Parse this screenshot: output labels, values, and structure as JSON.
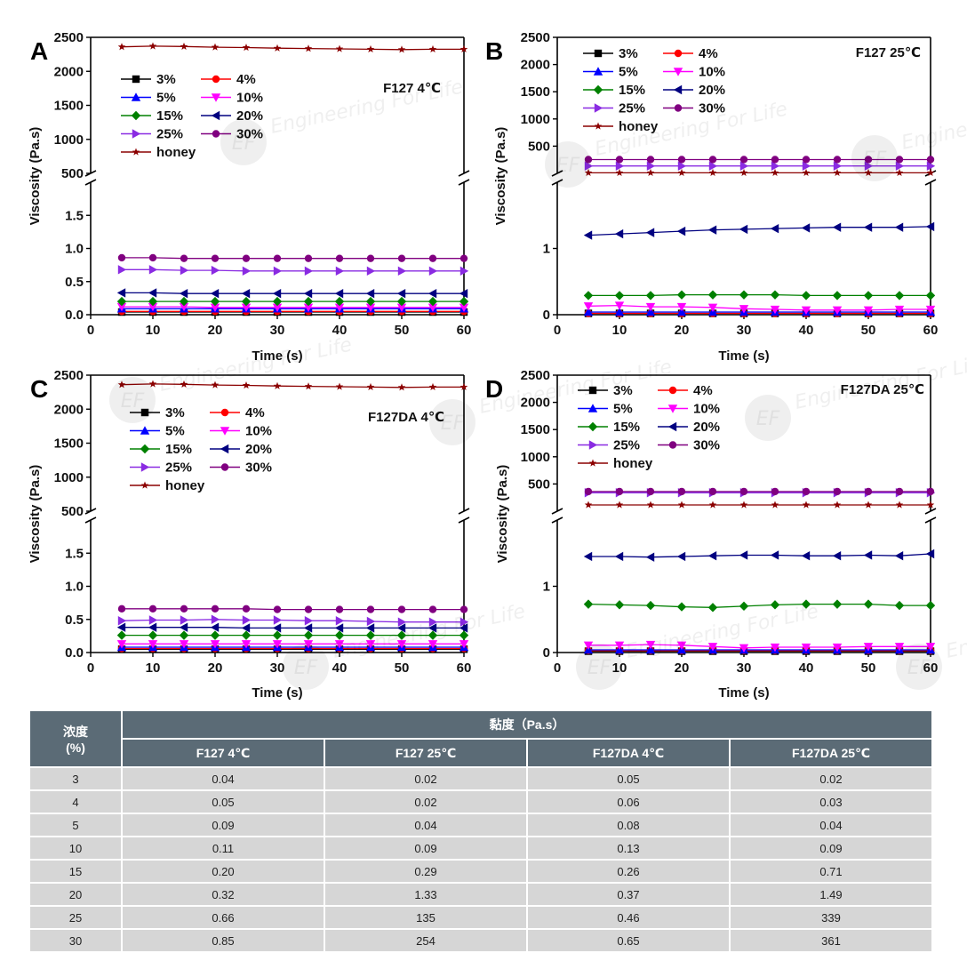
{
  "legend_labels": [
    "3%",
    "4%",
    "5%",
    "10%",
    "15%",
    "20%",
    "25%",
    "30%",
    "honey"
  ],
  "watermark": {
    "logo": "EF",
    "text": "Engineering For Life"
  },
  "chart_data": [
    {
      "panel": "A",
      "title": "F127 4℃",
      "type": "line",
      "xlabel": "Time (s)",
      "ylabel": "Viscosity (Pa.s)",
      "xlim": [
        0,
        60
      ],
      "xticks": [
        "0",
        "10",
        "20",
        "30",
        "40",
        "50",
        "60"
      ],
      "x": [
        5,
        10,
        15,
        20,
        25,
        30,
        35,
        40,
        45,
        50,
        55,
        60
      ],
      "broken_y": {
        "lower_ylim": [
          0,
          2.0
        ],
        "lower_ticks": [
          "0.0",
          "0.5",
          "1.0",
          "1.5"
        ],
        "upper_ylim": [
          500,
          2500
        ],
        "upper_ticks": [
          "500",
          "1000",
          "1500",
          "2000",
          "2500"
        ]
      },
      "series": [
        {
          "name": "3%",
          "values": [
            0.04,
            0.04,
            0.04,
            0.04,
            0.04,
            0.04,
            0.04,
            0.04,
            0.04,
            0.04,
            0.04,
            0.04
          ]
        },
        {
          "name": "4%",
          "values": [
            0.05,
            0.05,
            0.05,
            0.05,
            0.05,
            0.05,
            0.05,
            0.05,
            0.05,
            0.05,
            0.05,
            0.05
          ]
        },
        {
          "name": "5%",
          "values": [
            0.09,
            0.09,
            0.09,
            0.09,
            0.09,
            0.09,
            0.09,
            0.09,
            0.09,
            0.09,
            0.09,
            0.09
          ]
        },
        {
          "name": "10%",
          "values": [
            0.12,
            0.12,
            0.12,
            0.11,
            0.11,
            0.11,
            0.11,
            0.11,
            0.11,
            0.11,
            0.11,
            0.11
          ]
        },
        {
          "name": "15%",
          "values": [
            0.2,
            0.2,
            0.2,
            0.2,
            0.2,
            0.2,
            0.2,
            0.2,
            0.2,
            0.2,
            0.2,
            0.2
          ]
        },
        {
          "name": "20%",
          "values": [
            0.33,
            0.33,
            0.32,
            0.32,
            0.32,
            0.32,
            0.32,
            0.32,
            0.32,
            0.32,
            0.32,
            0.32
          ]
        },
        {
          "name": "25%",
          "values": [
            0.68,
            0.68,
            0.67,
            0.67,
            0.66,
            0.66,
            0.66,
            0.66,
            0.66,
            0.66,
            0.66,
            0.66
          ]
        },
        {
          "name": "30%",
          "values": [
            0.86,
            0.86,
            0.85,
            0.85,
            0.85,
            0.85,
            0.85,
            0.85,
            0.85,
            0.85,
            0.85,
            0.85
          ]
        },
        {
          "name": "honey",
          "values": [
            2360,
            2370,
            2365,
            2355,
            2350,
            2340,
            2335,
            2330,
            2325,
            2320,
            2325,
            2325
          ]
        }
      ]
    },
    {
      "panel": "B",
      "title": "F127 25℃",
      "type": "line",
      "xlabel": "Time (s)",
      "ylabel": "Viscosity (Pa.s)",
      "xlim": [
        0,
        60
      ],
      "xticks": [
        "0",
        "10",
        "20",
        "30",
        "40",
        "50",
        "60"
      ],
      "x": [
        5,
        10,
        15,
        20,
        25,
        30,
        35,
        40,
        45,
        50,
        55,
        60
      ],
      "broken_y": {
        "lower_ylim": [
          0,
          2.0
        ],
        "lower_ticks": [
          "0",
          "1"
        ],
        "upper_ylim": [
          0,
          2500
        ],
        "upper_ticks": [
          "500",
          "1000",
          "1500",
          "2000",
          "2500"
        ]
      },
      "series": [
        {
          "name": "3%",
          "values": [
            0.02,
            0.02,
            0.02,
            0.02,
            0.02,
            0.02,
            0.02,
            0.02,
            0.02,
            0.02,
            0.02,
            0.02
          ]
        },
        {
          "name": "4%",
          "values": [
            0.02,
            0.02,
            0.02,
            0.02,
            0.02,
            0.02,
            0.02,
            0.02,
            0.02,
            0.02,
            0.02,
            0.02
          ]
        },
        {
          "name": "5%",
          "values": [
            0.04,
            0.04,
            0.04,
            0.04,
            0.04,
            0.04,
            0.04,
            0.04,
            0.04,
            0.04,
            0.04,
            0.04
          ]
        },
        {
          "name": "10%",
          "values": [
            0.13,
            0.14,
            0.12,
            0.12,
            0.11,
            0.09,
            0.08,
            0.07,
            0.07,
            0.07,
            0.08,
            0.08
          ]
        },
        {
          "name": "15%",
          "values": [
            0.29,
            0.29,
            0.29,
            0.3,
            0.3,
            0.3,
            0.3,
            0.29,
            0.29,
            0.29,
            0.29,
            0.29
          ]
        },
        {
          "name": "20%",
          "values": [
            1.2,
            1.22,
            1.24,
            1.26,
            1.28,
            1.29,
            1.3,
            1.31,
            1.32,
            1.32,
            1.32,
            1.33
          ]
        },
        {
          "name": "25%",
          "values": [
            135,
            135,
            135,
            135,
            135,
            135,
            135,
            135,
            135,
            135,
            135,
            135
          ]
        },
        {
          "name": "30%",
          "values": [
            254,
            254,
            254,
            254,
            254,
            254,
            254,
            254,
            254,
            254,
            254,
            254
          ]
        },
        {
          "name": "honey",
          "values": [
            10,
            10,
            10,
            10,
            10,
            10,
            10,
            10,
            10,
            10,
            10,
            10
          ]
        }
      ]
    },
    {
      "panel": "C",
      "title": "F127DA 4℃",
      "type": "line",
      "xlabel": "Time (s)",
      "ylabel": "Viscosity (Pa.s)",
      "xlim": [
        0,
        60
      ],
      "xticks": [
        "0",
        "10",
        "20",
        "30",
        "40",
        "50",
        "60"
      ],
      "x": [
        5,
        10,
        15,
        20,
        25,
        30,
        35,
        40,
        45,
        50,
        55,
        60
      ],
      "broken_y": {
        "lower_ylim": [
          0,
          2.0
        ],
        "lower_ticks": [
          "0.0",
          "0.5",
          "1.0",
          "1.5"
        ],
        "upper_ylim": [
          500,
          2500
        ],
        "upper_ticks": [
          "500",
          "1000",
          "1500",
          "2000",
          "2500"
        ]
      },
      "series": [
        {
          "name": "3%",
          "values": [
            0.05,
            0.05,
            0.05,
            0.05,
            0.05,
            0.05,
            0.05,
            0.05,
            0.05,
            0.05,
            0.05,
            0.05
          ]
        },
        {
          "name": "4%",
          "values": [
            0.06,
            0.06,
            0.06,
            0.06,
            0.06,
            0.06,
            0.06,
            0.06,
            0.06,
            0.06,
            0.06,
            0.06
          ]
        },
        {
          "name": "5%",
          "values": [
            0.08,
            0.08,
            0.08,
            0.08,
            0.08,
            0.08,
            0.08,
            0.08,
            0.08,
            0.08,
            0.08,
            0.08
          ]
        },
        {
          "name": "10%",
          "values": [
            0.13,
            0.13,
            0.13,
            0.13,
            0.13,
            0.13,
            0.13,
            0.13,
            0.13,
            0.13,
            0.13,
            0.13
          ]
        },
        {
          "name": "15%",
          "values": [
            0.26,
            0.26,
            0.26,
            0.26,
            0.26,
            0.26,
            0.26,
            0.26,
            0.26,
            0.26,
            0.26,
            0.26
          ]
        },
        {
          "name": "20%",
          "values": [
            0.38,
            0.38,
            0.38,
            0.38,
            0.37,
            0.37,
            0.37,
            0.37,
            0.37,
            0.37,
            0.37,
            0.37
          ]
        },
        {
          "name": "25%",
          "values": [
            0.48,
            0.49,
            0.49,
            0.5,
            0.49,
            0.49,
            0.48,
            0.48,
            0.47,
            0.46,
            0.46,
            0.46
          ]
        },
        {
          "name": "30%",
          "values": [
            0.66,
            0.66,
            0.66,
            0.66,
            0.66,
            0.65,
            0.65,
            0.65,
            0.65,
            0.65,
            0.65,
            0.65
          ]
        },
        {
          "name": "honey",
          "values": [
            2360,
            2370,
            2365,
            2355,
            2350,
            2340,
            2335,
            2330,
            2325,
            2320,
            2325,
            2325
          ]
        }
      ]
    },
    {
      "panel": "D",
      "title": "F127DA 25℃",
      "type": "line",
      "xlabel": "Time (s)",
      "ylabel": "Viscosity (Pa.s)",
      "xlim": [
        0,
        60
      ],
      "xticks": [
        "0",
        "10",
        "20",
        "30",
        "40",
        "50",
        "60"
      ],
      "x": [
        5,
        10,
        15,
        20,
        25,
        30,
        35,
        40,
        45,
        50,
        55,
        60
      ],
      "broken_y": {
        "lower_ylim": [
          0,
          2.0
        ],
        "lower_ticks": [
          "0",
          "1"
        ],
        "upper_ylim": [
          0,
          2500
        ],
        "upper_ticks": [
          "500",
          "1000",
          "1500",
          "2000",
          "2500"
        ]
      },
      "series": [
        {
          "name": "3%",
          "values": [
            0.02,
            0.02,
            0.02,
            0.02,
            0.02,
            0.02,
            0.02,
            0.02,
            0.02,
            0.02,
            0.02,
            0.02
          ]
        },
        {
          "name": "4%",
          "values": [
            0.03,
            0.03,
            0.03,
            0.03,
            0.03,
            0.03,
            0.03,
            0.03,
            0.03,
            0.03,
            0.03,
            0.03
          ]
        },
        {
          "name": "5%",
          "values": [
            0.04,
            0.04,
            0.04,
            0.04,
            0.04,
            0.04,
            0.04,
            0.04,
            0.04,
            0.04,
            0.04,
            0.04
          ]
        },
        {
          "name": "10%",
          "values": [
            0.11,
            0.11,
            0.12,
            0.11,
            0.09,
            0.07,
            0.08,
            0.08,
            0.08,
            0.09,
            0.09,
            0.09
          ]
        },
        {
          "name": "15%",
          "values": [
            0.73,
            0.72,
            0.71,
            0.69,
            0.68,
            0.7,
            0.72,
            0.73,
            0.73,
            0.73,
            0.71,
            0.71
          ]
        },
        {
          "name": "20%",
          "values": [
            1.45,
            1.45,
            1.44,
            1.45,
            1.46,
            1.47,
            1.47,
            1.46,
            1.46,
            1.47,
            1.46,
            1.49
          ]
        },
        {
          "name": "25%",
          "values": [
            339,
            339,
            339,
            339,
            339,
            339,
            339,
            339,
            339,
            339,
            339,
            339
          ]
        },
        {
          "name": "30%",
          "values": [
            361,
            361,
            361,
            361,
            361,
            361,
            361,
            361,
            361,
            361,
            361,
            361
          ]
        },
        {
          "name": "honey",
          "values": [
            115,
            115,
            115,
            115,
            115,
            115,
            115,
            115,
            115,
            115,
            115,
            115
          ]
        }
      ]
    },
    {
      "type": "table",
      "header_group": "黏度（Pa.s）",
      "row_header": "浓度\n(%)",
      "columns": [
        "F127 4℃",
        "F127 25℃",
        "F127DA 4℃",
        "F127DA 25℃"
      ],
      "rows": [
        {
          "conc": "3",
          "values": [
            "0.04",
            "0.02",
            "0.05",
            "0.02"
          ]
        },
        {
          "conc": "4",
          "values": [
            "0.05",
            "0.02",
            "0.06",
            "0.03"
          ]
        },
        {
          "conc": "5",
          "values": [
            "0.09",
            "0.04",
            "0.08",
            "0.04"
          ]
        },
        {
          "conc": "10",
          "values": [
            "0.11",
            "0.09",
            "0.13",
            "0.09"
          ]
        },
        {
          "conc": "15",
          "values": [
            "0.20",
            "0.29",
            "0.26",
            "0.71"
          ]
        },
        {
          "conc": "20",
          "values": [
            "0.32",
            "1.33",
            "0.37",
            "1.49"
          ]
        },
        {
          "conc": "25",
          "values": [
            "0.66",
            "135",
            "0.46",
            "339"
          ]
        },
        {
          "conc": "30",
          "values": [
            "0.85",
            "254",
            "0.65",
            "361"
          ]
        }
      ]
    }
  ]
}
